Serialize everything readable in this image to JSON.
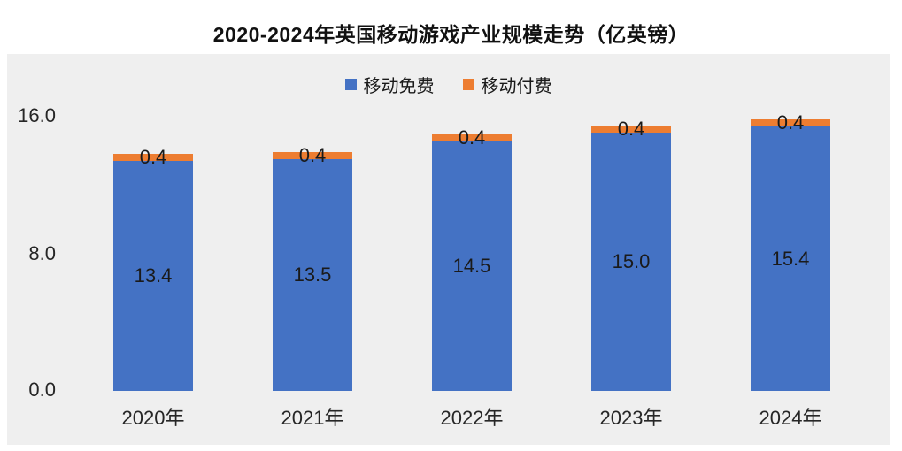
{
  "title": "2020-2024年英国移动游戏产业规模走势（亿英镑）",
  "colors": {
    "free_blue": "#4472c4",
    "paid_orange": "#ed7d31",
    "panel_background": "#efefef",
    "text": "#1a1a1a"
  },
  "legend": [
    {
      "label": "移动免费",
      "color": "#4472c4"
    },
    {
      "label": "移动付费",
      "color": "#ed7d31"
    }
  ],
  "y_axis": {
    "ticks": [
      "16.0",
      "8.0",
      "0.0"
    ]
  },
  "chart_data": {
    "type": "bar",
    "stacked": true,
    "title": "2020-2024年英国移动游戏产业规模走势（亿英镑）",
    "categories": [
      "2020年",
      "2021年",
      "2022年",
      "2023年",
      "2024年"
    ],
    "series": [
      {
        "name": "移动免费",
        "color": "#4472c4",
        "values": [
          13.4,
          13.5,
          14.5,
          15.0,
          15.4
        ],
        "labels": [
          "13.4",
          "13.5",
          "14.5",
          "15.0",
          "15.4"
        ]
      },
      {
        "name": "移动付费",
        "color": "#ed7d31",
        "values": [
          0.4,
          0.4,
          0.4,
          0.4,
          0.4
        ],
        "labels": [
          "0.4",
          "0.4",
          "0.4",
          "0.4",
          "0.4"
        ]
      }
    ],
    "xlabel": "",
    "ylabel": "",
    "ylim": [
      0,
      16
    ],
    "yticks": [
      0.0,
      8.0,
      16.0
    ],
    "grid": false,
    "legend_position": "top-center"
  }
}
